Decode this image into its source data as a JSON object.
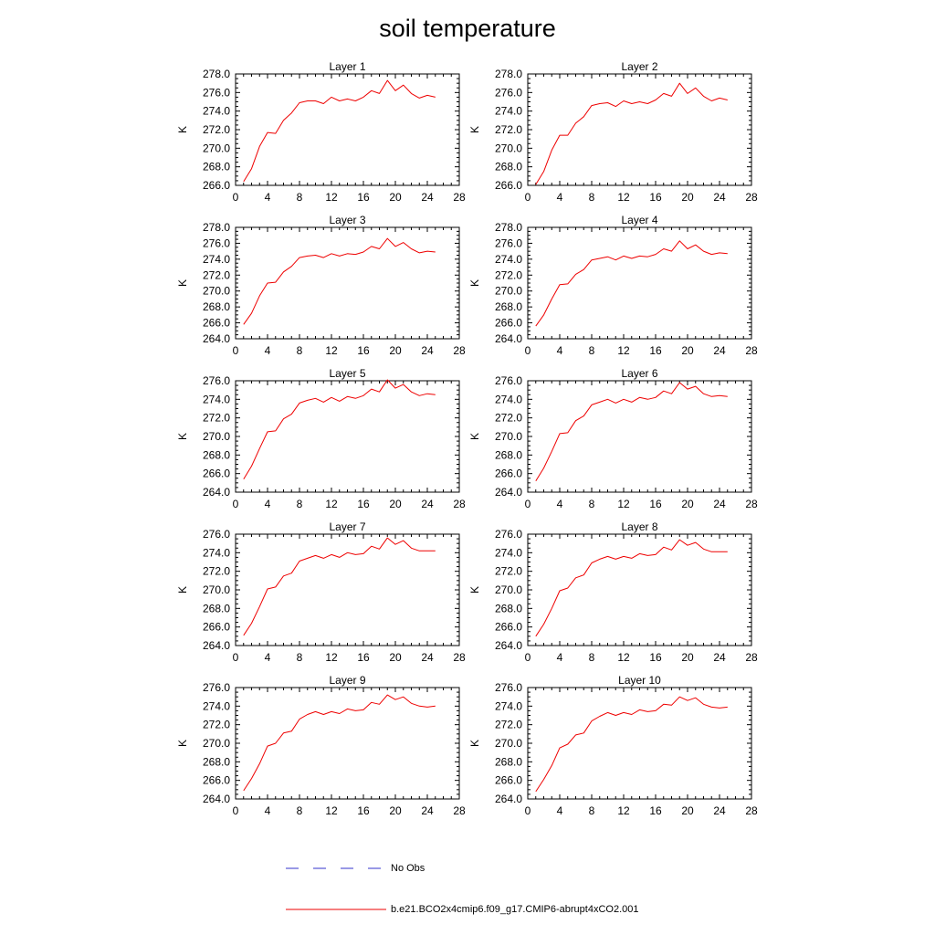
{
  "title": "soil temperature",
  "legend": {
    "obs_label": "No Obs",
    "obs_color": "#3333cc",
    "model_label": "b.e21.BCO2x4cmip6.f09_g17.CMIP6-abrupt4xCO2.001",
    "model_color": "#ee0000"
  },
  "chart_data": [
    {
      "type": "line",
      "title": "Layer 1",
      "xlabel": "",
      "ylabel": "K",
      "xlim": [
        0,
        28
      ],
      "xticks": [
        "0",
        "4",
        "8",
        "12",
        "16",
        "20",
        "24",
        "28"
      ],
      "ylim": [
        266,
        278
      ],
      "yticks": [
        "266.0",
        "268.0",
        "270.0",
        "272.0",
        "274.0",
        "276.0",
        "278.0"
      ],
      "x": [
        1,
        2,
        3,
        4,
        5,
        6,
        7,
        8,
        9,
        10,
        11,
        12,
        13,
        14,
        15,
        16,
        17,
        18,
        19,
        20,
        21,
        22,
        23,
        24,
        25
      ],
      "series": [
        {
          "name": "b.e21.BCO2x4cmip6.f09_g17.CMIP6-abrupt4xCO2.001",
          "values": [
            266.4,
            267.8,
            270.2,
            271.7,
            271.6,
            273.0,
            273.8,
            274.9,
            275.1,
            275.1,
            274.8,
            275.5,
            275.1,
            275.3,
            275.1,
            275.5,
            276.2,
            275.9,
            277.3,
            276.2,
            276.8,
            275.9,
            275.4,
            275.7,
            275.5
          ]
        }
      ]
    },
    {
      "type": "line",
      "title": "Layer 2",
      "xlabel": "",
      "ylabel": "K",
      "xlim": [
        0,
        28
      ],
      "xticks": [
        "0",
        "4",
        "8",
        "12",
        "16",
        "20",
        "24",
        "28"
      ],
      "ylim": [
        266,
        278
      ],
      "yticks": [
        "266.0",
        "268.0",
        "270.0",
        "272.0",
        "274.0",
        "276.0",
        "278.0"
      ],
      "x": [
        1,
        2,
        3,
        4,
        5,
        6,
        7,
        8,
        9,
        10,
        11,
        12,
        13,
        14,
        15,
        16,
        17,
        18,
        19,
        20,
        21,
        22,
        23,
        24,
        25
      ],
      "series": [
        {
          "name": "b.e21.BCO2x4cmip6.f09_g17.CMIP6-abrupt4xCO2.001",
          "values": [
            266.1,
            267.5,
            269.8,
            271.4,
            271.4,
            272.7,
            273.4,
            274.6,
            274.8,
            274.9,
            274.5,
            275.1,
            274.8,
            275.0,
            274.8,
            275.2,
            275.9,
            275.6,
            277.0,
            275.9,
            276.5,
            275.6,
            275.1,
            275.4,
            275.2
          ]
        }
      ]
    },
    {
      "type": "line",
      "title": "Layer 3",
      "xlabel": "",
      "ylabel": "K",
      "xlim": [
        0,
        28
      ],
      "xticks": [
        "0",
        "4",
        "8",
        "12",
        "16",
        "20",
        "24",
        "28"
      ],
      "ylim": [
        264,
        278
      ],
      "yticks": [
        "264.0",
        "266.0",
        "268.0",
        "270.0",
        "272.0",
        "274.0",
        "276.0",
        "278.0"
      ],
      "x": [
        1,
        2,
        3,
        4,
        5,
        6,
        7,
        8,
        9,
        10,
        11,
        12,
        13,
        14,
        15,
        16,
        17,
        18,
        19,
        20,
        21,
        22,
        23,
        24,
        25
      ],
      "series": [
        {
          "name": "b.e21.BCO2x4cmip6.f09_g17.CMIP6-abrupt4xCO2.001",
          "values": [
            265.8,
            267.2,
            269.4,
            271.0,
            271.1,
            272.4,
            273.1,
            274.2,
            274.4,
            274.5,
            274.2,
            274.7,
            274.4,
            274.7,
            274.6,
            274.9,
            275.6,
            275.3,
            276.6,
            275.6,
            276.1,
            275.3,
            274.8,
            275.0,
            274.9
          ]
        }
      ]
    },
    {
      "type": "line",
      "title": "Layer 4",
      "xlabel": "",
      "ylabel": "K",
      "xlim": [
        0,
        28
      ],
      "xticks": [
        "0",
        "4",
        "8",
        "12",
        "16",
        "20",
        "24",
        "28"
      ],
      "ylim": [
        264,
        278
      ],
      "yticks": [
        "264.0",
        "266.0",
        "268.0",
        "270.0",
        "272.0",
        "274.0",
        "276.0",
        "278.0"
      ],
      "x": [
        1,
        2,
        3,
        4,
        5,
        6,
        7,
        8,
        9,
        10,
        11,
        12,
        13,
        14,
        15,
        16,
        17,
        18,
        19,
        20,
        21,
        22,
        23,
        24,
        25
      ],
      "series": [
        {
          "name": "b.e21.BCO2x4cmip6.f09_g17.CMIP6-abrupt4xCO2.001",
          "values": [
            265.6,
            267.0,
            269.0,
            270.8,
            270.9,
            272.1,
            272.7,
            273.9,
            274.1,
            274.3,
            273.9,
            274.4,
            274.1,
            274.4,
            274.3,
            274.6,
            275.3,
            275.0,
            276.3,
            275.3,
            275.8,
            275.0,
            274.6,
            274.8,
            274.7
          ]
        }
      ]
    },
    {
      "type": "line",
      "title": "Layer 5",
      "xlabel": "",
      "ylabel": "K",
      "xlim": [
        0,
        28
      ],
      "xticks": [
        "0",
        "4",
        "8",
        "12",
        "16",
        "20",
        "24",
        "28"
      ],
      "ylim": [
        264,
        276
      ],
      "yticks": [
        "264.0",
        "266.0",
        "268.0",
        "270.0",
        "272.0",
        "274.0",
        "276.0"
      ],
      "x": [
        1,
        2,
        3,
        4,
        5,
        6,
        7,
        8,
        9,
        10,
        11,
        12,
        13,
        14,
        15,
        16,
        17,
        18,
        19,
        20,
        21,
        22,
        23,
        24,
        25
      ],
      "series": [
        {
          "name": "b.e21.BCO2x4cmip6.f09_g17.CMIP6-abrupt4xCO2.001",
          "values": [
            265.4,
            266.8,
            268.7,
            270.5,
            270.6,
            271.9,
            272.4,
            273.6,
            273.9,
            274.1,
            273.7,
            274.2,
            273.8,
            274.3,
            274.1,
            274.4,
            275.1,
            274.8,
            276.1,
            275.2,
            275.6,
            274.8,
            274.4,
            274.6,
            274.5
          ]
        }
      ]
    },
    {
      "type": "line",
      "title": "Layer 6",
      "xlabel": "",
      "ylabel": "K",
      "xlim": [
        0,
        28
      ],
      "xticks": [
        "0",
        "4",
        "8",
        "12",
        "16",
        "20",
        "24",
        "28"
      ],
      "ylim": [
        264,
        276
      ],
      "yticks": [
        "264.0",
        "266.0",
        "268.0",
        "270.0",
        "272.0",
        "274.0",
        "276.0"
      ],
      "x": [
        1,
        2,
        3,
        4,
        5,
        6,
        7,
        8,
        9,
        10,
        11,
        12,
        13,
        14,
        15,
        16,
        17,
        18,
        19,
        20,
        21,
        22,
        23,
        24,
        25
      ],
      "series": [
        {
          "name": "b.e21.BCO2x4cmip6.f09_g17.CMIP6-abrupt4xCO2.001",
          "values": [
            265.2,
            266.6,
            268.4,
            270.3,
            270.4,
            271.7,
            272.2,
            273.4,
            273.7,
            274.0,
            273.6,
            274.0,
            273.7,
            274.2,
            274.0,
            274.2,
            274.9,
            274.6,
            275.8,
            275.1,
            275.4,
            274.6,
            274.3,
            274.4,
            274.3
          ]
        }
      ]
    },
    {
      "type": "line",
      "title": "Layer 7",
      "xlabel": "",
      "ylabel": "K",
      "xlim": [
        0,
        28
      ],
      "xticks": [
        "0",
        "4",
        "8",
        "12",
        "16",
        "20",
        "24",
        "28"
      ],
      "ylim": [
        264,
        276
      ],
      "yticks": [
        "264.0",
        "266.0",
        "268.0",
        "270.0",
        "272.0",
        "274.0",
        "276.0"
      ],
      "x": [
        1,
        2,
        3,
        4,
        5,
        6,
        7,
        8,
        9,
        10,
        11,
        12,
        13,
        14,
        15,
        16,
        17,
        18,
        19,
        20,
        21,
        22,
        23,
        24,
        25
      ],
      "series": [
        {
          "name": "b.e21.BCO2x4cmip6.f09_g17.CMIP6-abrupt4xCO2.001",
          "values": [
            265.1,
            266.4,
            268.2,
            270.1,
            270.3,
            271.5,
            271.8,
            273.1,
            273.4,
            273.7,
            273.4,
            273.8,
            273.5,
            274.0,
            273.8,
            273.9,
            274.7,
            274.4,
            275.6,
            274.9,
            275.3,
            274.5,
            274.2,
            274.2,
            274.2
          ]
        }
      ]
    },
    {
      "type": "line",
      "title": "Layer 8",
      "xlabel": "",
      "ylabel": "K",
      "xlim": [
        0,
        28
      ],
      "xticks": [
        "0",
        "4",
        "8",
        "12",
        "16",
        "20",
        "24",
        "28"
      ],
      "ylim": [
        264,
        276
      ],
      "yticks": [
        "264.0",
        "266.0",
        "268.0",
        "270.0",
        "272.0",
        "274.0",
        "276.0"
      ],
      "x": [
        1,
        2,
        3,
        4,
        5,
        6,
        7,
        8,
        9,
        10,
        11,
        12,
        13,
        14,
        15,
        16,
        17,
        18,
        19,
        20,
        21,
        22,
        23,
        24,
        25
      ],
      "series": [
        {
          "name": "b.e21.BCO2x4cmip6.f09_g17.CMIP6-abrupt4xCO2.001",
          "values": [
            265.0,
            266.3,
            268.0,
            269.9,
            270.2,
            271.3,
            271.6,
            272.9,
            273.3,
            273.6,
            273.3,
            273.6,
            273.4,
            273.9,
            273.7,
            273.8,
            274.6,
            274.3,
            275.4,
            274.8,
            275.1,
            274.4,
            274.1,
            274.1,
            274.1
          ]
        }
      ]
    },
    {
      "type": "line",
      "title": "Layer 9",
      "xlabel": "",
      "ylabel": "K",
      "xlim": [
        0,
        28
      ],
      "xticks": [
        "0",
        "4",
        "8",
        "12",
        "16",
        "20",
        "24",
        "28"
      ],
      "ylim": [
        264,
        276
      ],
      "yticks": [
        "264.0",
        "266.0",
        "268.0",
        "270.0",
        "272.0",
        "274.0",
        "276.0"
      ],
      "x": [
        1,
        2,
        3,
        4,
        5,
        6,
        7,
        8,
        9,
        10,
        11,
        12,
        13,
        14,
        15,
        16,
        17,
        18,
        19,
        20,
        21,
        22,
        23,
        24,
        25
      ],
      "series": [
        {
          "name": "b.e21.BCO2x4cmip6.f09_g17.CMIP6-abrupt4xCO2.001",
          "values": [
            264.9,
            266.2,
            267.8,
            269.7,
            270.0,
            271.1,
            271.3,
            272.6,
            273.1,
            273.4,
            273.1,
            273.4,
            273.2,
            273.7,
            273.5,
            273.6,
            274.4,
            274.2,
            275.2,
            274.7,
            275.0,
            274.3,
            274.0,
            273.9,
            274.0
          ]
        }
      ]
    },
    {
      "type": "line",
      "title": "Layer 10",
      "xlabel": "",
      "ylabel": "K",
      "xlim": [
        0,
        28
      ],
      "xticks": [
        "0",
        "4",
        "8",
        "12",
        "16",
        "20",
        "24",
        "28"
      ],
      "ylim": [
        264,
        276
      ],
      "yticks": [
        "264.0",
        "266.0",
        "268.0",
        "270.0",
        "272.0",
        "274.0",
        "276.0"
      ],
      "x": [
        1,
        2,
        3,
        4,
        5,
        6,
        7,
        8,
        9,
        10,
        11,
        12,
        13,
        14,
        15,
        16,
        17,
        18,
        19,
        20,
        21,
        22,
        23,
        24,
        25
      ],
      "series": [
        {
          "name": "b.e21.BCO2x4cmip6.f09_g17.CMIP6-abrupt4xCO2.001",
          "values": [
            264.8,
            266.1,
            267.6,
            269.5,
            269.9,
            270.9,
            271.1,
            272.4,
            272.9,
            273.3,
            273.0,
            273.3,
            273.1,
            273.6,
            273.4,
            273.5,
            274.2,
            274.1,
            275.0,
            274.6,
            274.9,
            274.2,
            273.9,
            273.8,
            273.9
          ]
        }
      ]
    }
  ]
}
